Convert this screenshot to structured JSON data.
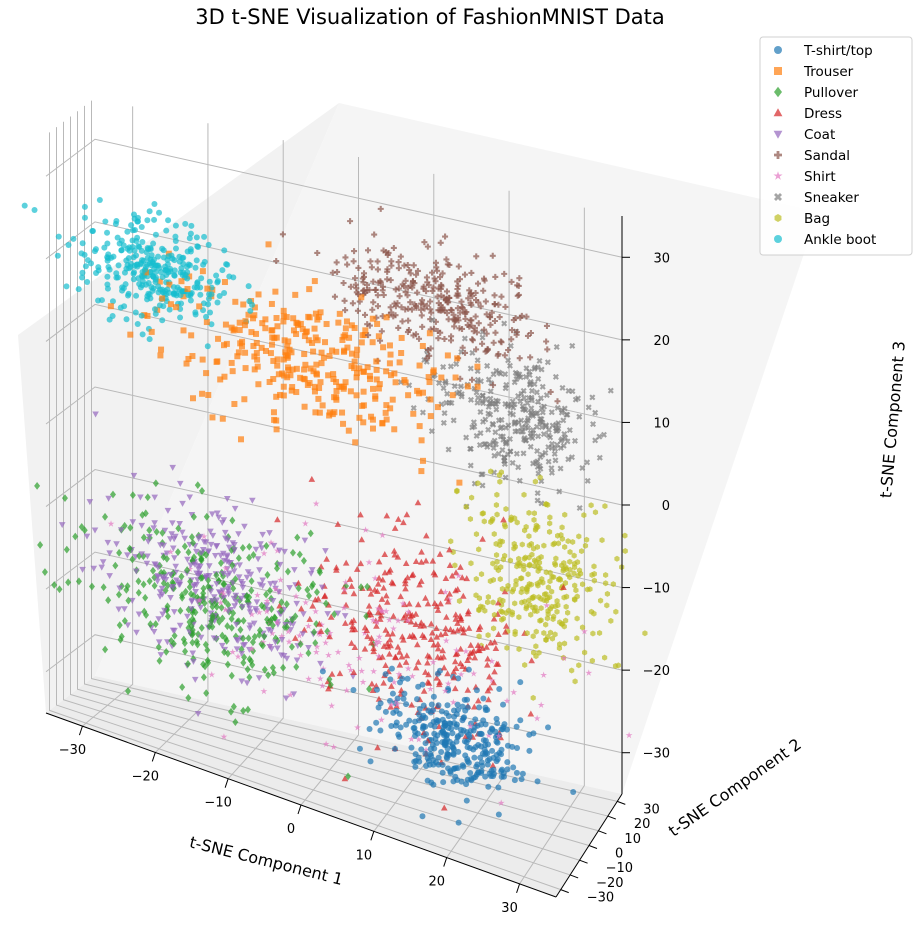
{
  "chart_data": {
    "type": "scatter",
    "title": "3D t-SNE Visualization of FashionMNIST Data",
    "xlabel": "t-SNE Component 1",
    "ylabel": "t-SNE Component 2",
    "zlabel": "t-SNE Component 3",
    "xlim": [
      -35,
      35
    ],
    "ylim": [
      -35,
      35
    ],
    "zlim": [
      -35,
      35
    ],
    "x_ticks": [
      -30,
      -20,
      -10,
      0,
      10,
      20,
      30
    ],
    "y_ticks": [
      -30,
      -20,
      -10,
      0,
      10,
      20,
      30
    ],
    "z_ticks": [
      -30,
      -20,
      -10,
      0,
      10,
      20,
      30
    ],
    "grid": true,
    "legend_position": "top-right",
    "series": [
      {
        "name": "T-shirt/top",
        "color": "#1f77b4",
        "marker": "circle",
        "center": [
          18,
          -10,
          -25
        ],
        "spread": [
          5,
          5,
          3
        ]
      },
      {
        "name": "Trouser",
        "color": "#ff7f0e",
        "marker": "square",
        "center": [
          -5,
          12,
          12
        ],
        "spread": [
          10,
          8,
          4
        ]
      },
      {
        "name": "Pullover",
        "color": "#2ca02c",
        "marker": "diamond",
        "center": [
          -15,
          -8,
          -18
        ],
        "spread": [
          8,
          6,
          5
        ]
      },
      {
        "name": "Dress",
        "color": "#d62728",
        "marker": "triangle-up",
        "center": [
          12,
          -2,
          -15
        ],
        "spread": [
          7,
          6,
          6
        ]
      },
      {
        "name": "Coat",
        "color": "#9467bd",
        "marker": "triangle-down",
        "center": [
          -15,
          -8,
          -16
        ],
        "spread": [
          7,
          6,
          5
        ]
      },
      {
        "name": "Sandal",
        "color": "#8c564b",
        "marker": "plus",
        "center": [
          12,
          20,
          22
        ],
        "spread": [
          7,
          5,
          3
        ]
      },
      {
        "name": "Shirt",
        "color": "#e377c2",
        "marker": "star",
        "center": [
          5,
          -8,
          -18
        ],
        "spread": [
          12,
          8,
          6
        ]
      },
      {
        "name": "Sneaker",
        "color": "#7f7f7f",
        "marker": "x",
        "center": [
          22,
          22,
          10
        ],
        "spread": [
          5,
          5,
          4
        ]
      },
      {
        "name": "Bag",
        "color": "#bcbd22",
        "marker": "hexagon",
        "center": [
          28,
          2,
          -5
        ],
        "spread": [
          5,
          5,
          5
        ]
      },
      {
        "name": "Ankle boot",
        "color": "#17becf",
        "marker": "circle",
        "center": [
          -25,
          12,
          18
        ],
        "spread": [
          5,
          5,
          3
        ]
      }
    ]
  }
}
